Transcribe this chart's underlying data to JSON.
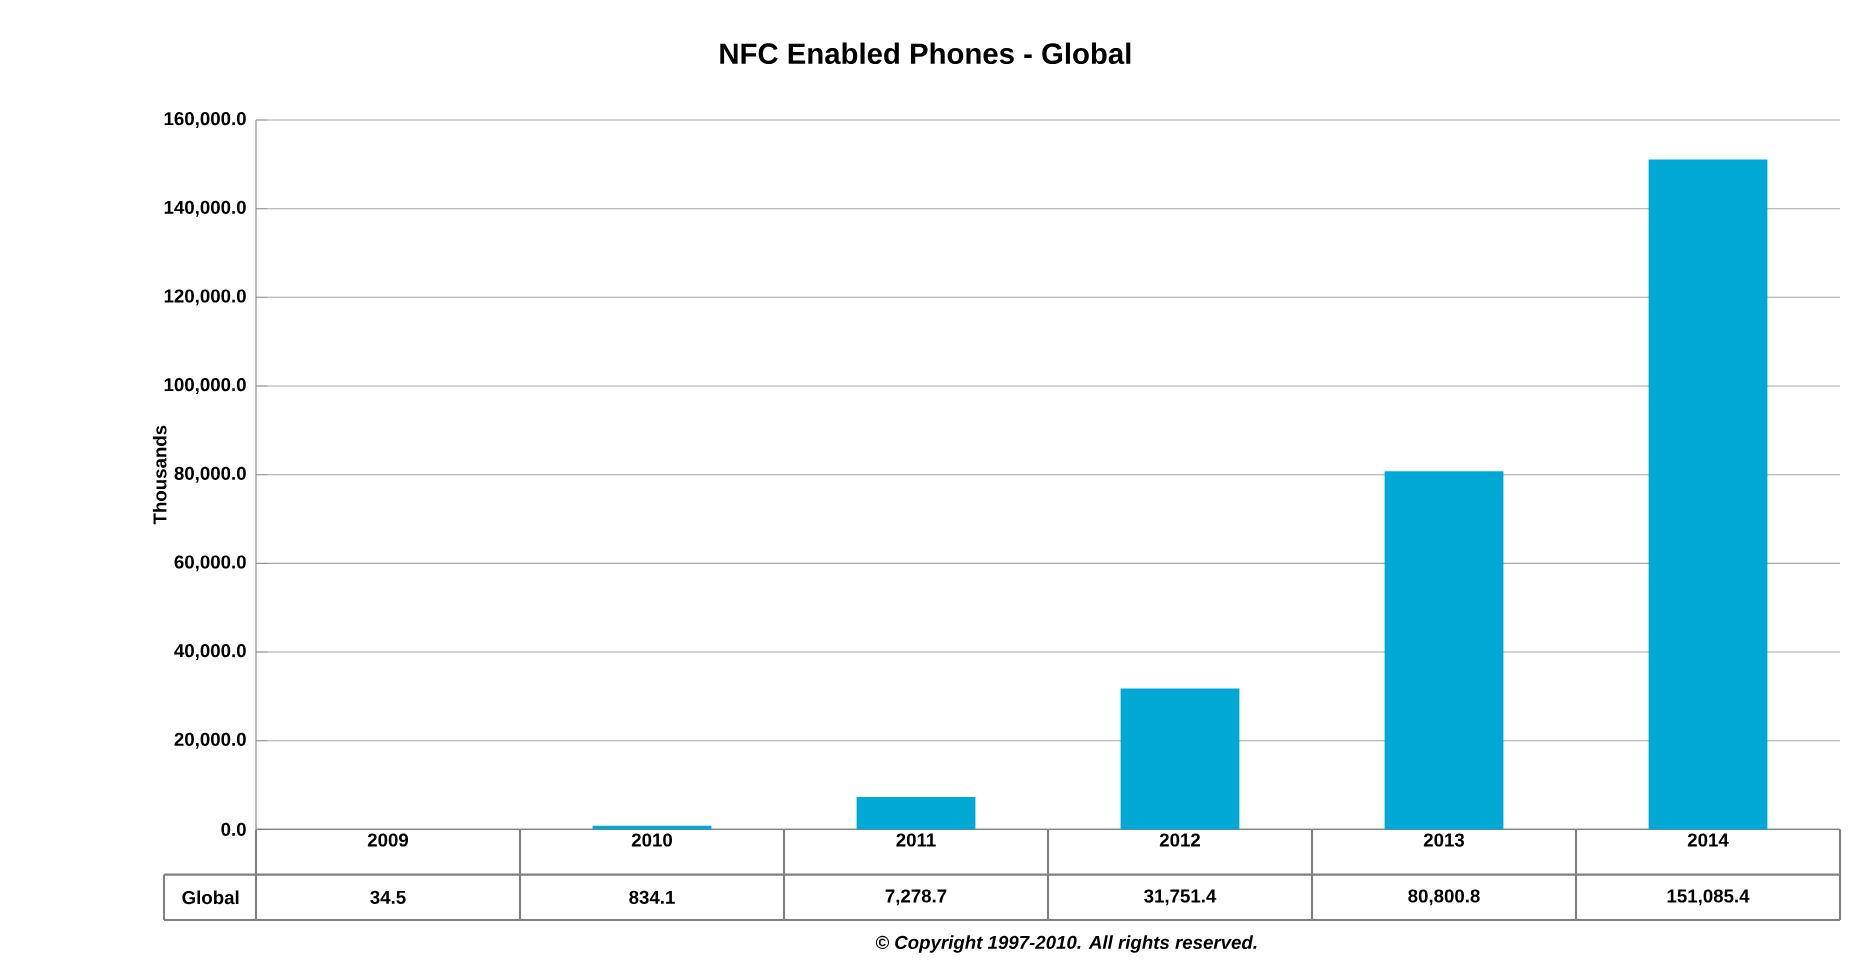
{
  "chart_data": {
    "type": "bar",
    "title": "NFC Enabled Phones - Global",
    "ylabel": "Thousands",
    "categories": [
      "2009",
      "2010",
      "2011",
      "2012",
      "2013",
      "2014"
    ],
    "series": [
      {
        "name": "Global",
        "color": "#00a8d6",
        "values": [
          34.5,
          834.1,
          7278.7,
          31751.4,
          80800.8,
          151085.4
        ],
        "value_labels": [
          "34.5",
          "834.1",
          "7,278.7",
          "31,751.4",
          "80,800.8",
          "151,085.4"
        ]
      }
    ],
    "ylim": [
      0,
      160000
    ],
    "yticks": [
      {
        "value": 0,
        "label": "0.0"
      },
      {
        "value": 20000,
        "label": "20,000.0"
      },
      {
        "value": 40000,
        "label": "40,000.0"
      },
      {
        "value": 60000,
        "label": "60,000.0"
      },
      {
        "value": 80000,
        "label": "80,000.0"
      },
      {
        "value": 100000,
        "label": "100,000.0"
      },
      {
        "value": 120000,
        "label": "120,000.0"
      },
      {
        "value": 140000,
        "label": "140,000.0"
      },
      {
        "value": 160000,
        "label": "160,000.0"
      }
    ],
    "grid": "y",
    "annotations": [
      "© Copyright 1997-2010. All rights reserved."
    ]
  }
}
